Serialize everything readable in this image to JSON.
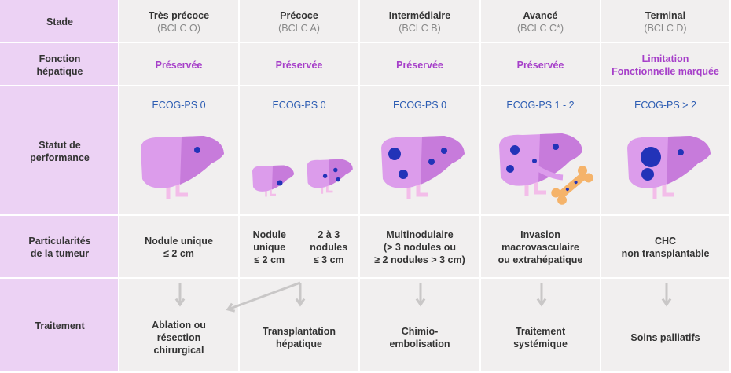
{
  "row_labels": [
    [
      "Stade"
    ],
    [
      "Fonction",
      "hépatique"
    ],
    [
      "Statut de",
      "performance"
    ],
    [
      "Particularités",
      "de la tumeur"
    ],
    [
      "Traitement"
    ]
  ],
  "stages": [
    {
      "name": "Très précoce",
      "code": "(BCLC O)",
      "function": [
        "Préservée"
      ],
      "ecog": "ECOG-PS 0",
      "tumour": [
        [
          "Nodule unique",
          "≤ 2 cm"
        ]
      ],
      "treatment": [
        "Ablation ou",
        "résection",
        "chirurgical"
      ]
    },
    {
      "name": "Précoce",
      "code": "(BCLC A)",
      "function": [
        "Préservée"
      ],
      "ecog": "ECOG-PS 0",
      "tumour": [
        [
          "Nodule",
          "unique",
          "≤ 2 cm"
        ],
        [
          "2 à 3",
          "nodules",
          "≤ 3 cm"
        ]
      ],
      "treatment": [
        "Transplantation",
        "hépatique"
      ]
    },
    {
      "name": "Intermédiaire",
      "code": "(BCLC B)",
      "function": [
        "Préservée"
      ],
      "ecog": "ECOG-PS 0",
      "tumour": [
        [
          "Multinodulaire",
          "(> 3 nodules ou",
          "≥ 2 nodules > 3 cm)"
        ]
      ],
      "treatment": [
        "Chimio-",
        "embolisation"
      ]
    },
    {
      "name": "Avancé",
      "code": "(BCLC C*)",
      "function": [
        "Préservée"
      ],
      "ecog": "ECOG-PS 1 - 2",
      "tumour": [
        [
          "Invasion",
          "macrovasculaire",
          "ou extrahépatique"
        ]
      ],
      "treatment": [
        "Traitement",
        "systémique"
      ]
    },
    {
      "name": "Terminal",
      "code": "(BCLC D)",
      "function": [
        "Limitation",
        "Fonctionnelle marquée"
      ],
      "ecog": "ECOG-PS > 2",
      "tumour": [
        [
          "CHC",
          "non transplantable"
        ]
      ],
      "treatment": [
        "Soins palliatifs"
      ]
    }
  ]
}
